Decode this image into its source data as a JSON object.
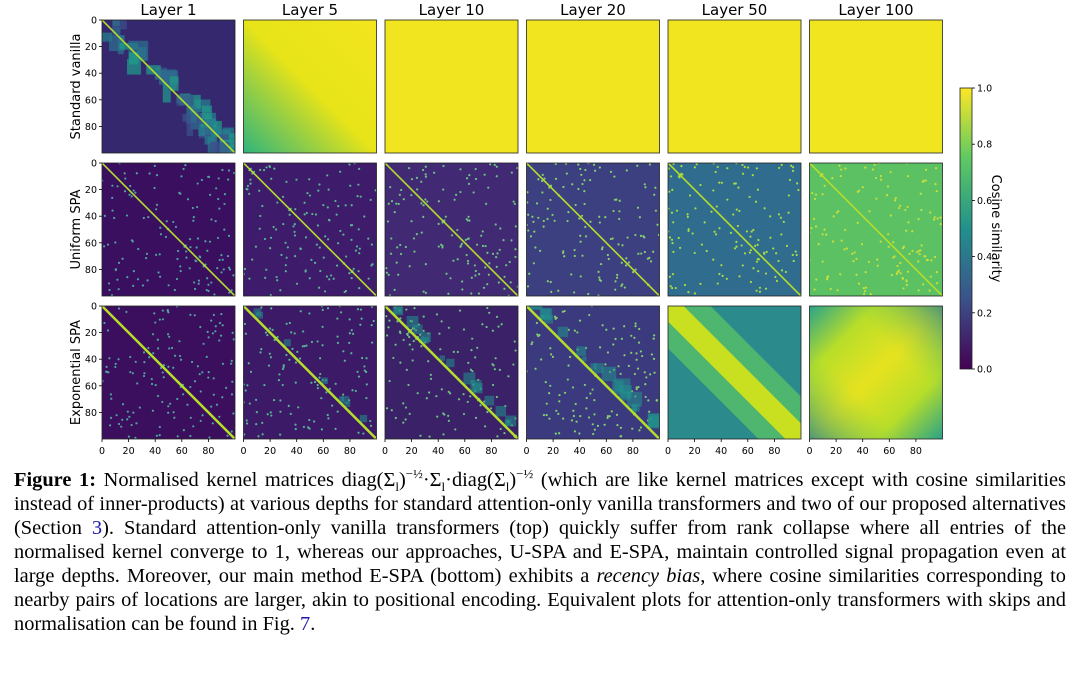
{
  "figure": {
    "columns": [
      "Layer 1",
      "Layer 5",
      "Layer 10",
      "Layer 20",
      "Layer 50",
      "Layer 100"
    ],
    "rows": [
      "Standard vanilla",
      "Uniform SPA",
      "Exponential SPA"
    ],
    "ticks": [
      0,
      20,
      40,
      60,
      80
    ],
    "axis_range": [
      0,
      100
    ],
    "colorbar": {
      "label": "Cosine similarity",
      "range": [
        0,
        1
      ],
      "ticks": [
        {
          "value": 0,
          "label": "0.0"
        },
        {
          "value": 0.2,
          "label": "0.2"
        },
        {
          "value": 0.4,
          "label": "0.4"
        },
        {
          "value": 0.6,
          "label": "0.6"
        },
        {
          "value": 0.8,
          "label": "0.8"
        },
        {
          "value": 1,
          "label": "1.0"
        }
      ]
    }
  },
  "caption": [
    {
      "text": "Figure 1:",
      "style": "b"
    },
    {
      "text": " Normalised kernel matrices diag(Σ"
    },
    {
      "text": "l",
      "style": "sub"
    },
    {
      "text": ")"
    },
    {
      "text": "−½",
      "style": "sup"
    },
    {
      "text": "·Σ"
    },
    {
      "text": "l",
      "style": "sub"
    },
    {
      "text": "·diag(Σ"
    },
    {
      "text": "l",
      "style": "sub"
    },
    {
      "text": ")"
    },
    {
      "text": "−½",
      "style": "sup"
    },
    {
      "text": " (which are like kernel matrices except with cosine similarities instead of inner-products) at various depths for standard attention-only vanilla transformers and two of our proposed alternatives (Section "
    },
    {
      "text": "3",
      "style": "link"
    },
    {
      "text": "). Standard attention-only vanilla transformers (top) quickly suffer from rank collapse where all entries of the normalised kernel converge to 1, whereas our approaches, U-SPA and E-SPA, maintain controlled signal propagation even at large depths. Moreover, our main method E-SPA (bottom) exhibits a "
    },
    {
      "text": "recency bias",
      "style": "i"
    },
    {
      "text": ", where cosine similarities corresponding to nearby pairs of locations are larger, akin to positional encoding. Equivalent plots for attention-only transformers with skips and normalisation can be found in Fig. "
    },
    {
      "text": "7",
      "style": "link"
    },
    {
      "text": "."
    }
  ]
}
